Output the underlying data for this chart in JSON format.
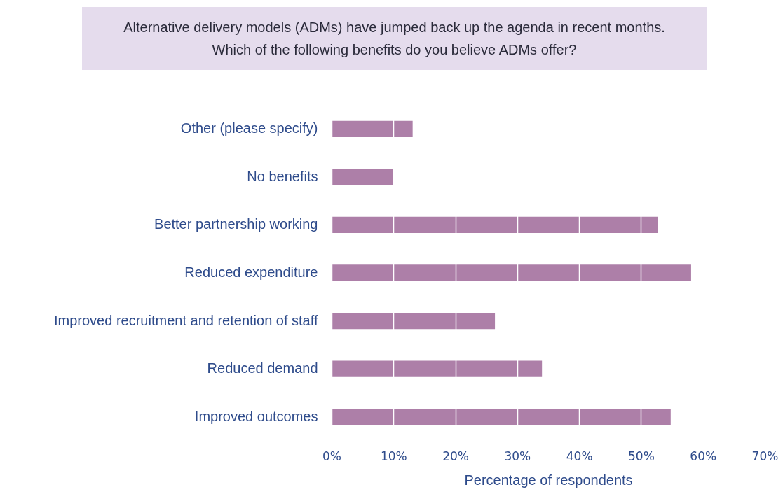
{
  "chart_data": {
    "type": "bar",
    "orientation": "horizontal",
    "title": "Alternative delivery models (ADMs) have jumped back up the agenda in recent months. Which of the following benefits do you believe ADMs offer?",
    "xlabel": "Percentage of respondents",
    "categories": [
      "Other (please specify)",
      "No benefits",
      "Better partnership working",
      "Reduced expenditure",
      "Improved recruitment and retention of staff",
      "Reduced demand",
      "Improved outcomes"
    ],
    "values": [
      13.1,
      10.0,
      52.7,
      58.1,
      26.4,
      34.0,
      54.8
    ],
    "color": "#ad7fa8",
    "xlim": [
      0,
      70
    ],
    "xticks": [
      {
        "value": 0,
        "label": "0%"
      },
      {
        "value": 10,
        "label": "10%"
      },
      {
        "value": 20,
        "label": "20%"
      },
      {
        "value": 30,
        "label": "30%"
      },
      {
        "value": 40,
        "label": "40%"
      },
      {
        "value": 50,
        "label": "50%"
      },
      {
        "value": 60,
        "label": "60%"
      },
      {
        "value": 70,
        "label": "70%"
      }
    ],
    "grid": "x"
  }
}
